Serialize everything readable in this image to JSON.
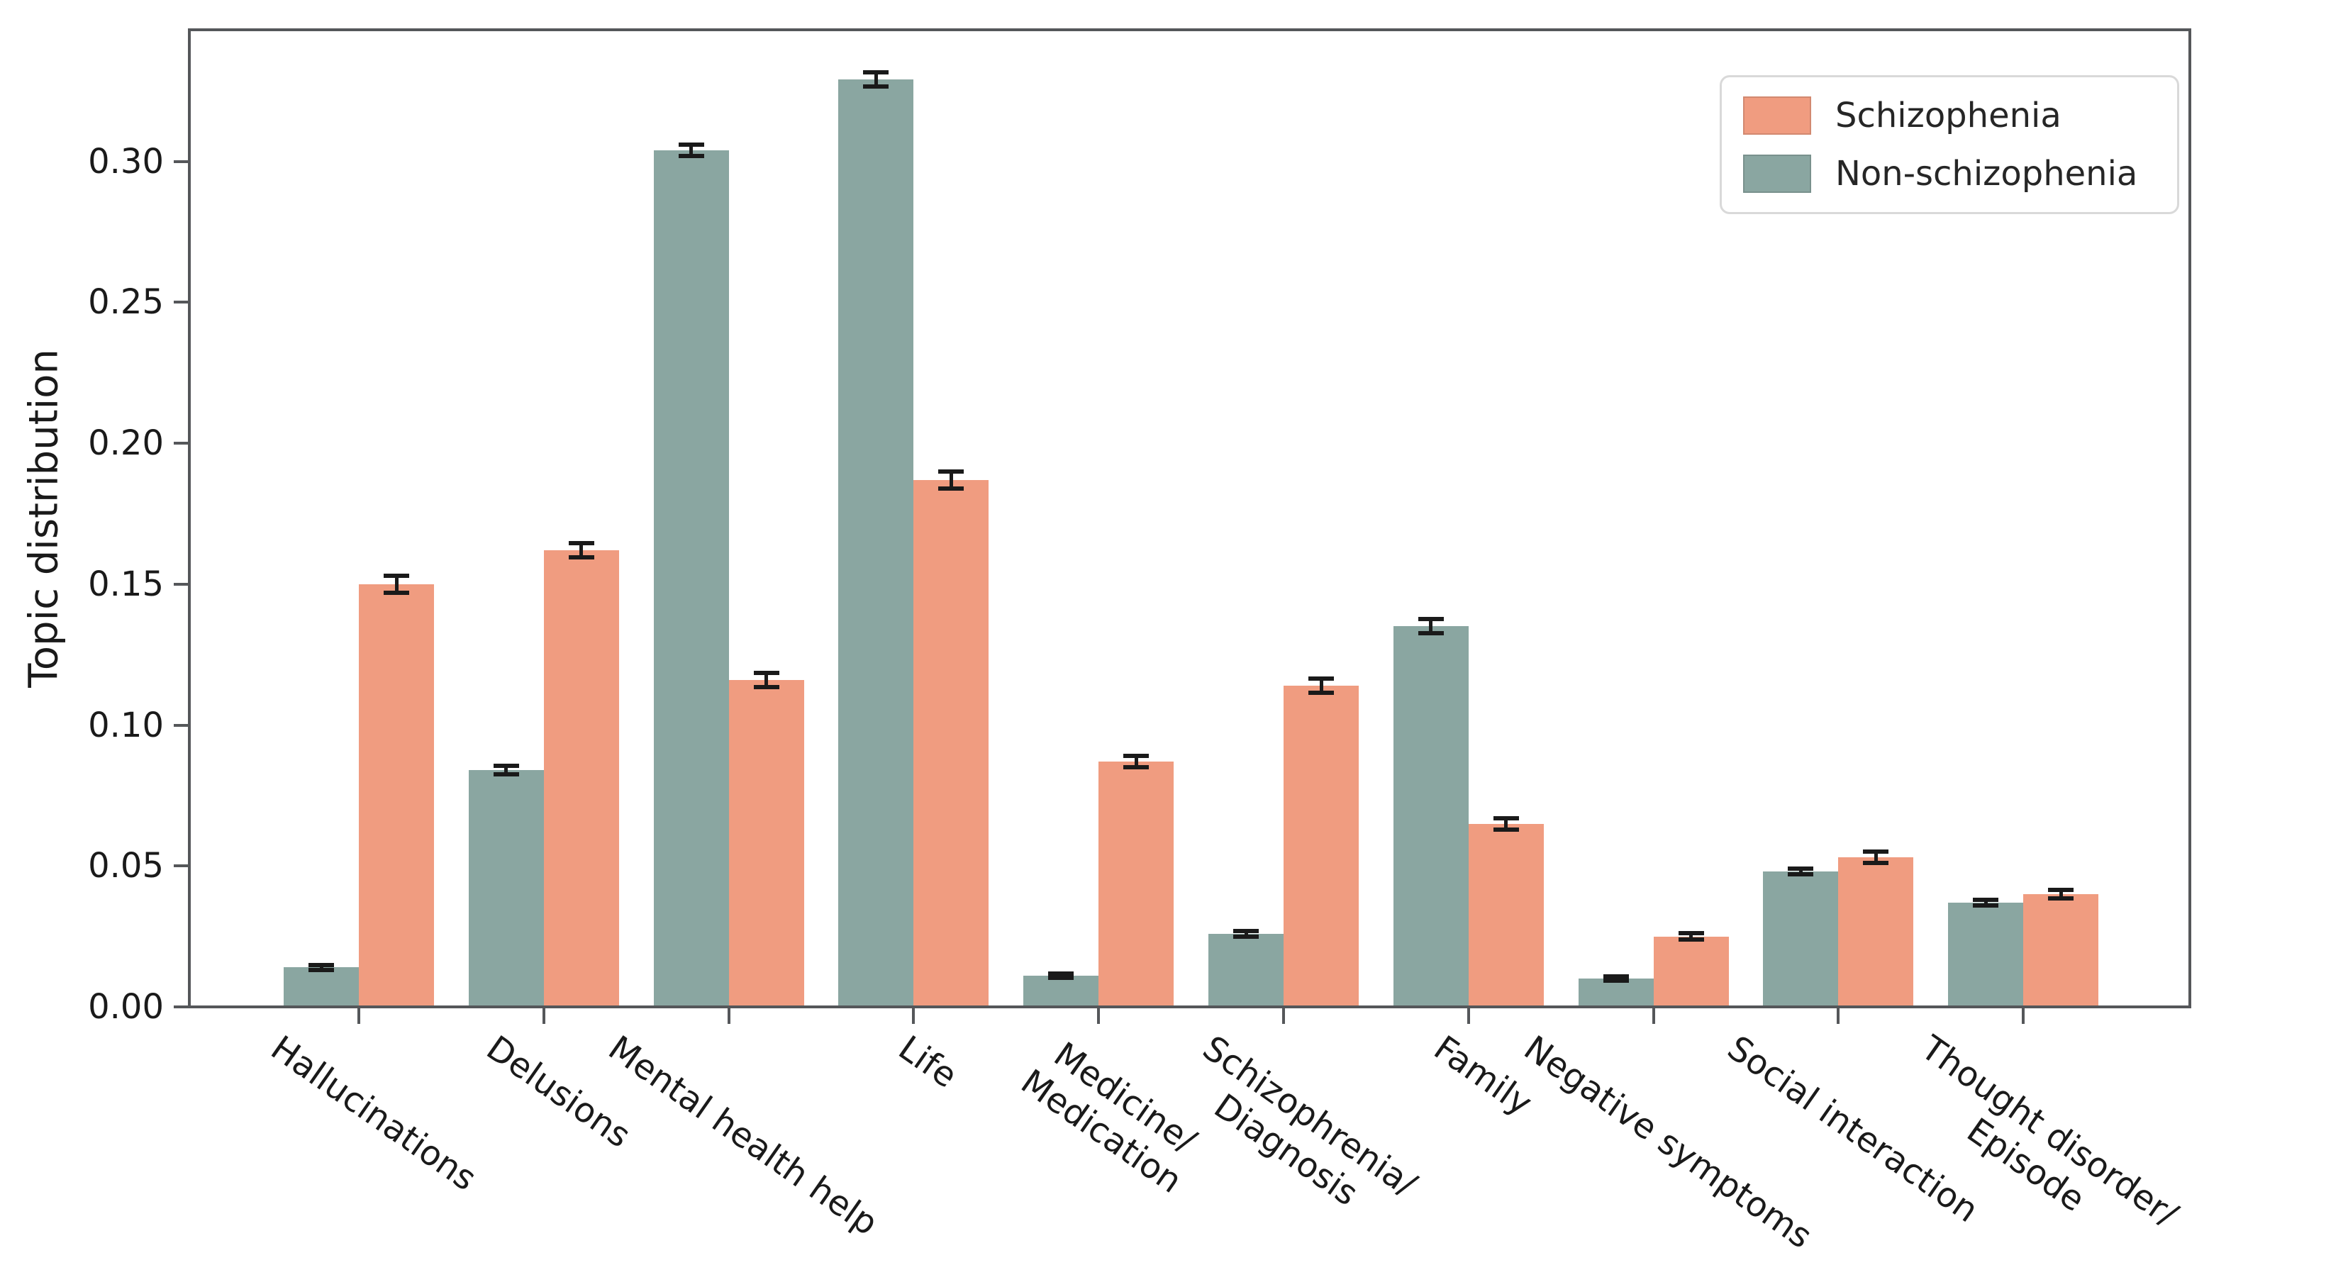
{
  "figure": {
    "background": "#ffffff",
    "spine_color": "#55575a"
  },
  "chart_data": {
    "type": "bar",
    "title": "",
    "xlabel": "",
    "ylabel": "Topic distribution",
    "categories": [
      "Hallucinations",
      "Delusions",
      "Mental health help",
      "Life",
      "Medicine/\nMedication",
      "Schizophrenia/\nDiagnosis",
      "Family",
      "Negative symptoms",
      "Social interaction",
      "Thought disorder/\nEpisode"
    ],
    "series": [
      {
        "name": "Schizophenia",
        "color": "#F09C80",
        "position_in_group": "right",
        "values": [
          0.15,
          0.162,
          0.116,
          0.187,
          0.087,
          0.114,
          0.065,
          0.025,
          0.053,
          0.04
        ],
        "errors": [
          0.003,
          0.0025,
          0.0025,
          0.003,
          0.002,
          0.0025,
          0.002,
          0.0012,
          0.002,
          0.0015
        ]
      },
      {
        "name": "Non-schizophenia",
        "color": "#8AA6A1",
        "position_in_group": "left",
        "values": [
          0.014,
          0.084,
          0.304,
          0.329,
          0.011,
          0.026,
          0.135,
          0.01,
          0.048,
          0.037
        ],
        "errors": [
          0.0008,
          0.0015,
          0.002,
          0.0025,
          0.0008,
          0.001,
          0.0025,
          0.0008,
          0.001,
          0.001
        ]
      }
    ],
    "yticks": [
      "0.00",
      "0.05",
      "0.10",
      "0.15",
      "0.20",
      "0.25",
      "0.30"
    ],
    "ytick_values": [
      0.0,
      0.05,
      0.1,
      0.15,
      0.2,
      0.25,
      0.3
    ],
    "ylim": [
      0,
      0.3467
    ],
    "xtick_rotation_deg": 35,
    "grid": false,
    "error_bar_color": "#1a1a1a",
    "legend_position": "upper right"
  },
  "legend": {
    "items": [
      {
        "label": "Schizophenia",
        "color": "#F09C80"
      },
      {
        "label": "Non-schizophenia",
        "color": "#8AA6A1"
      }
    ]
  }
}
